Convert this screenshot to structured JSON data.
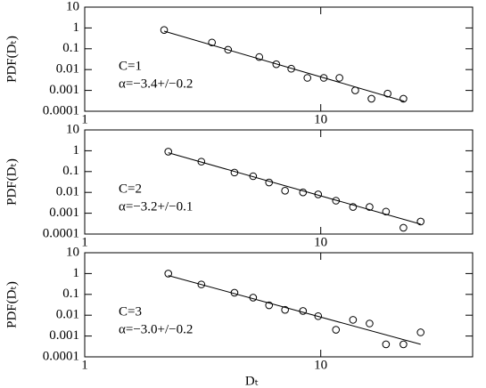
{
  "chart_data": [
    {
      "type": "scatter",
      "ylabel": "PDF(Dₜ)",
      "annotations": [
        "C=1",
        "α=−3.4+/−0.2"
      ],
      "xscale": "log",
      "yscale": "log",
      "xlim": [
        1,
        44
      ],
      "ylim": [
        0.0001,
        10
      ],
      "xticks": [
        1,
        10
      ],
      "yticks": [
        10,
        1,
        0.1,
        0.01,
        0.001,
        0.0001
      ],
      "color": "#000000",
      "x": [
        2.17,
        3.46,
        4.05,
        5.49,
        6.48,
        7.5,
        8.78,
        10.3,
        12.0,
        14.0,
        16.4,
        19.2,
        22.4
      ],
      "values": [
        0.8,
        0.2,
        0.09,
        0.04,
        0.018,
        0.011,
        0.004,
        0.004,
        0.004,
        0.001,
        0.0004,
        0.0007,
        0.0004
      ],
      "fit": {
        "x": [
          2.17,
          22.6
        ],
        "values": [
          0.7,
          0.0003
        ]
      }
    },
    {
      "type": "scatter",
      "ylabel": "PDF(Dₜ)",
      "annotations": [
        "C=2",
        "α=−3.2+/−0.1"
      ],
      "xscale": "log",
      "yscale": "log",
      "xlim": [
        1,
        44
      ],
      "ylim": [
        0.0001,
        10
      ],
      "xticks": [
        1,
        10
      ],
      "yticks": [
        10,
        1,
        0.1,
        0.01,
        0.001,
        0.0001
      ],
      "color": "#000000",
      "x": [
        2.26,
        3.12,
        4.31,
        5.17,
        6.04,
        7.06,
        8.41,
        9.75,
        11.6,
        13.7,
        16.1,
        18.9,
        22.4,
        26.5
      ],
      "values": [
        0.9,
        0.3,
        0.09,
        0.06,
        0.03,
        0.012,
        0.01,
        0.008,
        0.004,
        0.002,
        0.002,
        0.0012,
        0.0002,
        0.0004
      ],
      "fit": {
        "x": [
          2.26,
          26.5
        ],
        "values": [
          0.8,
          0.0003
        ]
      }
    },
    {
      "type": "scatter",
      "ylabel": "PDF(Dₜ)",
      "xlabel": "Dₜ",
      "annotations": [
        "C=3",
        "α=−3.0+/−0.2"
      ],
      "xscale": "log",
      "yscale": "log",
      "xlim": [
        1,
        44
      ],
      "ylim": [
        0.0001,
        10
      ],
      "xticks": [
        1,
        10
      ],
      "yticks": [
        10,
        1,
        0.1,
        0.01,
        0.001,
        0.0001
      ],
      "color": "#000000",
      "x": [
        2.26,
        3.12,
        4.31,
        5.17,
        6.04,
        7.06,
        8.41,
        9.75,
        11.6,
        13.7,
        16.1,
        18.9,
        22.4,
        26.5
      ],
      "values": [
        1,
        0.3,
        0.12,
        0.07,
        0.03,
        0.018,
        0.016,
        0.009,
        0.002,
        0.006,
        0.004,
        0.0004,
        0.0004,
        0.0015
      ],
      "fit": {
        "x": [
          2.26,
          26.5
        ],
        "values": [
          0.8,
          0.0004
        ]
      }
    }
  ]
}
